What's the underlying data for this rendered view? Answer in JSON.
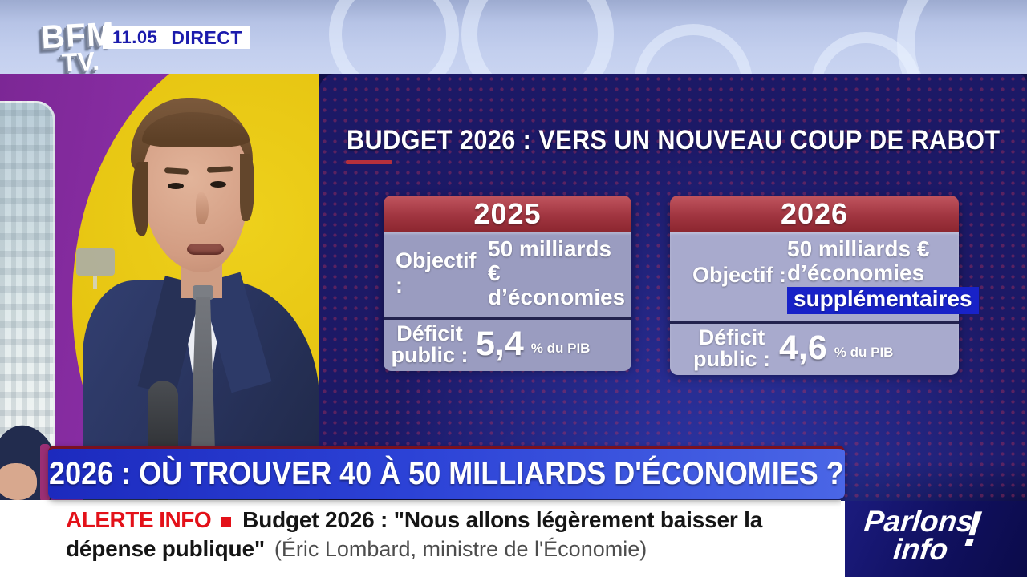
{
  "meta": {
    "channel_line1": "BFM",
    "channel_line2": "TV.",
    "time": "11.05",
    "live_label": "DIRECT"
  },
  "infographic": {
    "title": "BUDGET 2026 : VERS UN NOUVEAU COUP DE RABOT",
    "cards": [
      {
        "year": "2025",
        "objectif_label": "Objectif :",
        "objectif_line1": "50 milliards €",
        "objectif_line2": "d’économies",
        "deficit_label_line1": "Déficit",
        "deficit_label_line2": "public :",
        "deficit_value": "5,4",
        "deficit_unit": "% du PIB"
      },
      {
        "year": "2026",
        "objectif_label": "Objectif :",
        "objectif_line1": "50 milliards €",
        "objectif_line2": "d’économies",
        "objectif_highlight": "supplémentaires",
        "deficit_label_line1": "Déficit",
        "deficit_label_line2": "public :",
        "deficit_value": "4,6",
        "deficit_unit": "% du PIB"
      }
    ]
  },
  "banner": {
    "text": "2026 : OÙ TROUVER 40 À 50 MILLIARDS D'ÉCONOMIES ?"
  },
  "ticker": {
    "alert_label": "ALERTE INFO",
    "headline_line1": "Budget 2026 : \"Nous allons légèrement baisser la",
    "headline_line2": "dépense publique\"",
    "attribution": "(Éric Lombard, ministre de l'Économie)"
  },
  "program": {
    "word1": "Parlons",
    "word2": "info",
    "bang": "!"
  },
  "colors": {
    "accent_red": "#b5303c",
    "alert_red": "#e31119",
    "banner_blue": "#2c42d6",
    "highlight_blue": "#1822c8",
    "panel_navy": "#1c1966",
    "studio_purple": "#8e30aa",
    "studio_yellow": "#e2bd0b",
    "live_text_blue": "#1b1bac"
  }
}
